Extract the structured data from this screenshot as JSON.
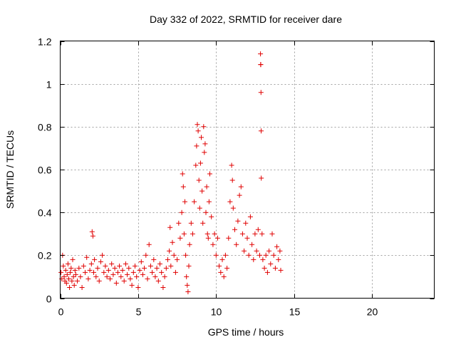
{
  "chart_data": {
    "type": "scatter",
    "title": "Day 332 of 2022, SRMTID for receiver dare",
    "xlabel": "GPS time / hours",
    "ylabel": "SRMTID / TECUs",
    "xlim": [
      0,
      24
    ],
    "ylim": [
      0,
      1.2
    ],
    "xticks": [
      "0",
      "5",
      "10",
      "15",
      "20"
    ],
    "xtick_values": [
      0,
      5,
      10,
      15,
      20
    ],
    "yticks": [
      "0",
      "0.2",
      "0.4",
      "0.6",
      "0.8",
      "1",
      "1.2"
    ],
    "ytick_values": [
      0,
      0.2,
      0.4,
      0.6,
      0.8,
      1.0,
      1.2
    ],
    "grid": true,
    "marker": "+",
    "series": [
      {
        "name": "SRMTID",
        "color": "#e00000",
        "points": [
          [
            0.05,
            0.12
          ],
          [
            0.1,
            0.09
          ],
          [
            0.15,
            0.2
          ],
          [
            0.2,
            0.15
          ],
          [
            0.25,
            0.1
          ],
          [
            0.3,
            0.08
          ],
          [
            0.35,
            0.13
          ],
          [
            0.4,
            0.07
          ],
          [
            0.45,
            0.11
          ],
          [
            0.5,
            0.16
          ],
          [
            0.55,
            0.09
          ],
          [
            0.6,
            0.05
          ],
          [
            0.65,
            0.12
          ],
          [
            0.7,
            0.14
          ],
          [
            0.75,
            0.08
          ],
          [
            0.8,
            0.18
          ],
          [
            0.85,
            0.1
          ],
          [
            0.9,
            0.06
          ],
          [
            0.95,
            0.13
          ],
          [
            1.0,
            0.11
          ],
          [
            1.1,
            0.08
          ],
          [
            1.2,
            0.14
          ],
          [
            1.3,
            0.1
          ],
          [
            1.4,
            0.05
          ],
          [
            1.5,
            0.15
          ],
          [
            1.6,
            0.12
          ],
          [
            1.7,
            0.19
          ],
          [
            1.8,
            0.09
          ],
          [
            1.9,
            0.13
          ],
          [
            2.0,
            0.16
          ],
          [
            2.05,
            0.31
          ],
          [
            2.1,
            0.29
          ],
          [
            2.15,
            0.12
          ],
          [
            2.2,
            0.18
          ],
          [
            2.3,
            0.1
          ],
          [
            2.4,
            0.14
          ],
          [
            2.5,
            0.08
          ],
          [
            2.6,
            0.17
          ],
          [
            2.7,
            0.2
          ],
          [
            2.8,
            0.12
          ],
          [
            2.9,
            0.15
          ],
          [
            3.0,
            0.1
          ],
          [
            3.1,
            0.13
          ],
          [
            3.2,
            0.09
          ],
          [
            3.3,
            0.16
          ],
          [
            3.4,
            0.11
          ],
          [
            3.5,
            0.14
          ],
          [
            3.6,
            0.07
          ],
          [
            3.7,
            0.12
          ],
          [
            3.8,
            0.15
          ],
          [
            3.9,
            0.1
          ],
          [
            4.0,
            0.13
          ],
          [
            4.1,
            0.08
          ],
          [
            4.2,
            0.16
          ],
          [
            4.3,
            0.11
          ],
          [
            4.4,
            0.14
          ],
          [
            4.5,
            0.09
          ],
          [
            4.6,
            0.06
          ],
          [
            4.7,
            0.12
          ],
          [
            4.8,
            0.15
          ],
          [
            4.9,
            0.1
          ],
          [
            5.0,
            0.05
          ],
          [
            5.1,
            0.13
          ],
          [
            5.2,
            0.17
          ],
          [
            5.3,
            0.11
          ],
          [
            5.4,
            0.14
          ],
          [
            5.5,
            0.2
          ],
          [
            5.6,
            0.09
          ],
          [
            5.7,
            0.25
          ],
          [
            5.8,
            0.15
          ],
          [
            5.9,
            0.12
          ],
          [
            6.0,
            0.18
          ],
          [
            6.1,
            0.1
          ],
          [
            6.2,
            0.14
          ],
          [
            6.3,
            0.08
          ],
          [
            6.4,
            0.16
          ],
          [
            6.5,
            0.12
          ],
          [
            6.6,
            0.05
          ],
          [
            6.7,
            0.1
          ],
          [
            6.8,
            0.14
          ],
          [
            6.9,
            0.18
          ],
          [
            7.0,
            0.22
          ],
          [
            7.05,
            0.33
          ],
          [
            7.1,
            0.15
          ],
          [
            7.2,
            0.26
          ],
          [
            7.3,
            0.2
          ],
          [
            7.4,
            0.12
          ],
          [
            7.5,
            0.18
          ],
          [
            7.6,
            0.35
          ],
          [
            7.7,
            0.28
          ],
          [
            7.8,
            0.4
          ],
          [
            7.85,
            0.58
          ],
          [
            7.9,
            0.52
          ],
          [
            7.95,
            0.3
          ],
          [
            8.0,
            0.45
          ],
          [
            8.05,
            0.2
          ],
          [
            8.1,
            0.1
          ],
          [
            8.15,
            0.06
          ],
          [
            8.2,
            0.03
          ],
          [
            8.25,
            0.15
          ],
          [
            8.3,
            0.25
          ],
          [
            8.4,
            0.35
          ],
          [
            8.5,
            0.3
          ],
          [
            8.6,
            0.45
          ],
          [
            8.7,
            0.62
          ],
          [
            8.75,
            0.71
          ],
          [
            8.8,
            0.81
          ],
          [
            8.85,
            0.78
          ],
          [
            8.9,
            0.55
          ],
          [
            8.95,
            0.42
          ],
          [
            9.0,
            0.63
          ],
          [
            9.05,
            0.75
          ],
          [
            9.1,
            0.5
          ],
          [
            9.15,
            0.35
          ],
          [
            9.2,
            0.8
          ],
          [
            9.25,
            0.68
          ],
          [
            9.3,
            0.72
          ],
          [
            9.35,
            0.4
          ],
          [
            9.4,
            0.52
          ],
          [
            9.45,
            0.3
          ],
          [
            9.5,
            0.28
          ],
          [
            9.55,
            0.45
          ],
          [
            9.6,
            0.58
          ],
          [
            9.7,
            0.38
          ],
          [
            9.8,
            0.25
          ],
          [
            9.9,
            0.3
          ],
          [
            10.0,
            0.2
          ],
          [
            10.1,
            0.28
          ],
          [
            10.2,
            0.15
          ],
          [
            10.3,
            0.12
          ],
          [
            10.4,
            0.18
          ],
          [
            10.5,
            0.1
          ],
          [
            10.6,
            0.2
          ],
          [
            10.7,
            0.14
          ],
          [
            10.8,
            0.28
          ],
          [
            10.9,
            0.45
          ],
          [
            11.0,
            0.62
          ],
          [
            11.05,
            0.55
          ],
          [
            11.1,
            0.42
          ],
          [
            11.2,
            0.32
          ],
          [
            11.3,
            0.25
          ],
          [
            11.4,
            0.36
          ],
          [
            11.5,
            0.48
          ],
          [
            11.6,
            0.52
          ],
          [
            11.7,
            0.3
          ],
          [
            11.8,
            0.22
          ],
          [
            11.9,
            0.35
          ],
          [
            12.0,
            0.28
          ],
          [
            12.1,
            0.2
          ],
          [
            12.2,
            0.38
          ],
          [
            12.3,
            0.25
          ],
          [
            12.4,
            0.18
          ],
          [
            12.5,
            0.3
          ],
          [
            12.6,
            0.22
          ],
          [
            12.7,
            0.32
          ],
          [
            12.8,
            0.2
          ],
          [
            12.85,
            1.14
          ],
          [
            12.86,
            1.09
          ],
          [
            12.87,
            1.09
          ],
          [
            12.88,
            0.96
          ],
          [
            12.89,
            0.78
          ],
          [
            12.9,
            0.56
          ],
          [
            12.95,
            0.3
          ],
          [
            13.0,
            0.18
          ],
          [
            13.1,
            0.14
          ],
          [
            13.2,
            0.2
          ],
          [
            13.3,
            0.12
          ],
          [
            13.4,
            0.22
          ],
          [
            13.5,
            0.16
          ],
          [
            13.6,
            0.3
          ],
          [
            13.7,
            0.2
          ],
          [
            13.8,
            0.14
          ],
          [
            13.9,
            0.24
          ],
          [
            14.0,
            0.18
          ],
          [
            14.1,
            0.22
          ],
          [
            14.15,
            0.13
          ]
        ]
      }
    ]
  }
}
